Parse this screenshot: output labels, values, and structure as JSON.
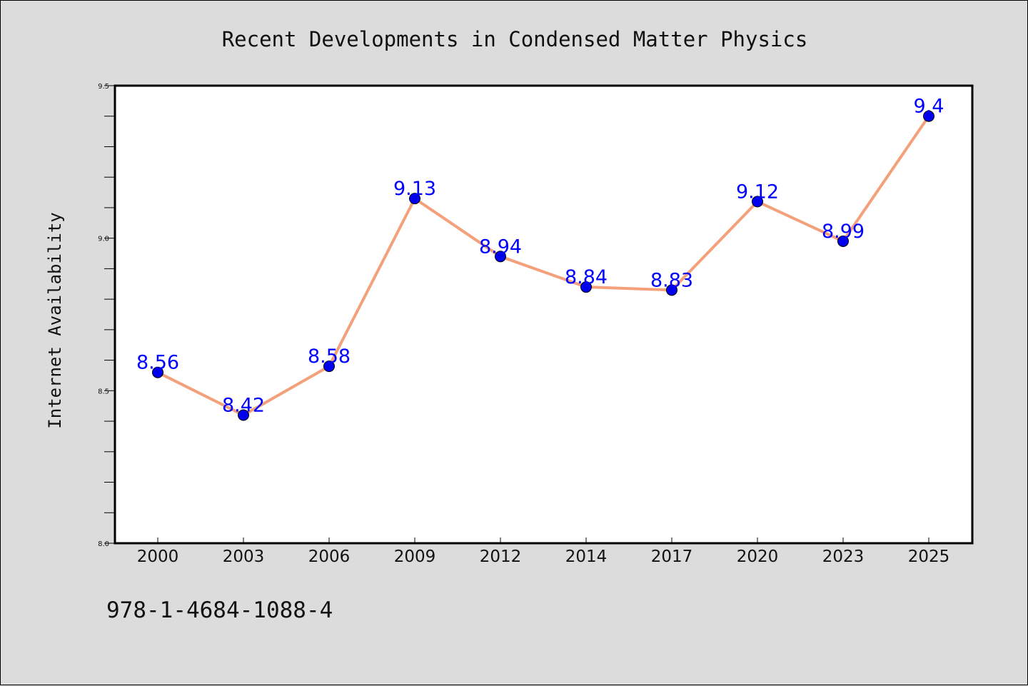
{
  "chart_data": {
    "type": "line",
    "title": "Recent Developments in Condensed Matter Physics",
    "xlabel": "",
    "ylabel": "Internet Availability",
    "categories": [
      "2000",
      "2003",
      "2006",
      "2009",
      "2012",
      "2014",
      "2017",
      "2020",
      "2023",
      "2025"
    ],
    "series": [
      {
        "values": [
          8.56,
          8.42,
          8.58,
          9.13,
          8.94,
          8.84,
          8.83,
          9.12,
          8.99,
          9.4
        ]
      }
    ],
    "data_labels": [
      "8.56",
      "8.42",
      "8.58",
      "9.13",
      "8.94",
      "8.84",
      "8.83",
      "9.12",
      "8.99",
      "9.4"
    ],
    "ylim": [
      8.0,
      9.5
    ],
    "ytick_labels": [
      "8.0",
      "8.5",
      "9.0",
      "9.5"
    ],
    "grid": false,
    "legend": "none",
    "colors": {
      "line": "#f4a07a",
      "marker": "#0000ee",
      "data_label": "#0000ff",
      "background": "#dcdcdc",
      "plot_background": "#ffffff"
    }
  },
  "annotation": {
    "isbn": "978-1-4684-1088-4"
  }
}
